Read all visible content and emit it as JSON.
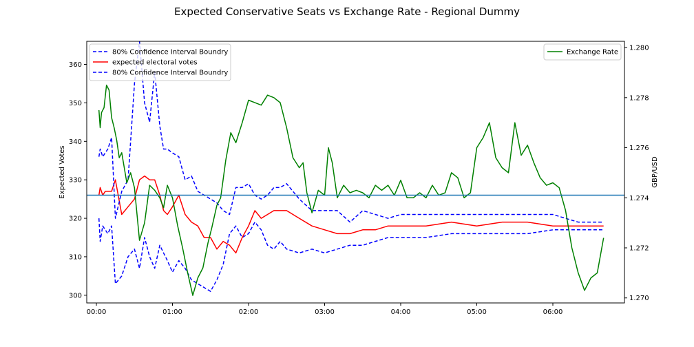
{
  "chart_data": {
    "type": "line",
    "title": "Expected Conservative Seats vs Exchange Rate - Regional Dummy",
    "xlabel": "",
    "x_range": [
      "00:00",
      "07:00"
    ],
    "x_ticks": [
      "00:00",
      "01:00",
      "02:00",
      "03:00",
      "04:00",
      "05:00",
      "06:00"
    ],
    "grid": false,
    "left_axis": {
      "label": "Expected Votes",
      "ylim": [
        298,
        366
      ],
      "ticks": [
        300,
        310,
        320,
        330,
        340,
        350,
        360
      ]
    },
    "right_axis": {
      "label": "GBP/USD",
      "ylim": [
        1.2698,
        1.28025
      ],
      "ticks": [
        "1.270",
        "1.272",
        "1.274",
        "1.276",
        "1.278",
        "1.280"
      ]
    },
    "hline": {
      "axis": "left",
      "value": 326,
      "color": "#1f77b4"
    },
    "legend_left_position": "upper-left",
    "legend_right_position": "upper-right",
    "series": [
      {
        "name": "80% Confidence Interval Boundry",
        "axis": "left",
        "color": "#0000ff",
        "style": "dashed",
        "x": [
          "00:02",
          "00:03",
          "00:05",
          "00:07",
          "00:09",
          "00:12",
          "00:15",
          "00:20",
          "00:25",
          "00:30",
          "00:34",
          "00:38",
          "00:42",
          "00:46",
          "00:50",
          "00:53",
          "00:56",
          "01:00",
          "01:05",
          "01:10",
          "01:15",
          "01:20",
          "01:25",
          "01:30",
          "01:35",
          "01:40",
          "01:45",
          "01:50",
          "01:55",
          "02:00",
          "02:05",
          "02:10",
          "02:15",
          "02:20",
          "02:25",
          "02:30",
          "02:40",
          "02:50",
          "03:00",
          "03:10",
          "03:20",
          "03:30",
          "03:40",
          "03:50",
          "04:00",
          "04:20",
          "04:40",
          "05:00",
          "05:20",
          "05:40",
          "06:00",
          "06:10",
          "06:20",
          "06:30",
          "06:40"
        ],
        "y": [
          320,
          314,
          318,
          317,
          316,
          318,
          303,
          305,
          310,
          312,
          307,
          315,
          310,
          307,
          313,
          311,
          309,
          306,
          309,
          307,
          304,
          303,
          302,
          301,
          304,
          308,
          316,
          318,
          315,
          316,
          319,
          317,
          313,
          312,
          314,
          312,
          311,
          312,
          311,
          312,
          313,
          313,
          314,
          315,
          315,
          315,
          316,
          316,
          316,
          316,
          317,
          317,
          317,
          317,
          317
        ]
      },
      {
        "name": "expected electoral votes",
        "axis": "left",
        "color": "#ff0000",
        "style": "solid",
        "x": [
          "00:02",
          "00:03",
          "00:05",
          "00:07",
          "00:09",
          "00:12",
          "00:15",
          "00:20",
          "00:25",
          "00:30",
          "00:34",
          "00:38",
          "00:42",
          "00:46",
          "00:50",
          "00:53",
          "00:56",
          "01:00",
          "01:05",
          "01:10",
          "01:15",
          "01:20",
          "01:25",
          "01:30",
          "01:35",
          "01:40",
          "01:45",
          "01:50",
          "01:55",
          "02:00",
          "02:05",
          "02:10",
          "02:15",
          "02:20",
          "02:25",
          "02:30",
          "02:40",
          "02:50",
          "03:00",
          "03:10",
          "03:20",
          "03:30",
          "03:40",
          "03:50",
          "04:00",
          "04:20",
          "04:40",
          "05:00",
          "05:20",
          "05:40",
          "06:00",
          "06:10",
          "06:20",
          "06:30",
          "06:40"
        ],
        "y": [
          326,
          328,
          326,
          327,
          327,
          327,
          330,
          321,
          323,
          325,
          330,
          331,
          330,
          330,
          326,
          322,
          321,
          323,
          326,
          321,
          319,
          318,
          315,
          315,
          312,
          314,
          313,
          311,
          315,
          318,
          322,
          320,
          321,
          322,
          322,
          322,
          320,
          318,
          317,
          316,
          316,
          317,
          317,
          318,
          318,
          318,
          319,
          318,
          319,
          319,
          318,
          318,
          318,
          318,
          318
        ]
      },
      {
        "name": "80% Confidence Interval Boundry",
        "axis": "left",
        "color": "#0000ff",
        "style": "dashed",
        "x": [
          "00:02",
          "00:03",
          "00:05",
          "00:07",
          "00:09",
          "00:12",
          "00:15",
          "00:20",
          "00:25",
          "00:30",
          "00:34",
          "00:38",
          "00:42",
          "00:46",
          "00:50",
          "00:53",
          "00:56",
          "01:00",
          "01:05",
          "01:10",
          "01:15",
          "01:20",
          "01:25",
          "01:30",
          "01:35",
          "01:40",
          "01:45",
          "01:50",
          "01:55",
          "02:00",
          "02:05",
          "02:10",
          "02:15",
          "02:20",
          "02:25",
          "02:30",
          "02:40",
          "02:50",
          "03:00",
          "03:10",
          "03:20",
          "03:30",
          "03:40",
          "03:50",
          "04:00",
          "04:20",
          "04:40",
          "05:00",
          "05:20",
          "05:40",
          "06:00",
          "06:10",
          "06:20",
          "06:30",
          "06:40"
        ],
        "y": [
          336,
          338,
          336,
          337,
          338,
          341,
          320,
          327,
          330,
          355,
          366,
          350,
          345,
          358,
          344,
          338,
          338,
          337,
          336,
          330,
          331,
          327,
          326,
          325,
          324,
          322,
          321,
          328,
          328,
          329,
          326,
          325,
          326,
          328,
          328,
          329,
          325,
          322,
          322,
          322,
          319,
          322,
          321,
          320,
          321,
          321,
          321,
          321,
          321,
          321,
          321,
          320,
          319,
          319,
          319
        ]
      },
      {
        "name": "Exchange Rate",
        "axis": "right",
        "color": "#008000",
        "style": "solid",
        "x": [
          "00:02",
          "00:03",
          "00:04",
          "00:06",
          "00:08",
          "00:10",
          "00:12",
          "00:14",
          "00:16",
          "00:18",
          "00:20",
          "00:24",
          "00:27",
          "00:30",
          "00:34",
          "00:38",
          "00:42",
          "00:46",
          "00:50",
          "00:53",
          "00:56",
          "01:00",
          "01:04",
          "01:08",
          "01:12",
          "01:16",
          "01:20",
          "01:24",
          "01:28",
          "01:31",
          "01:35",
          "01:38",
          "01:42",
          "01:46",
          "01:50",
          "01:55",
          "02:00",
          "02:05",
          "02:10",
          "02:15",
          "02:20",
          "02:25",
          "02:30",
          "02:35",
          "02:40",
          "02:43",
          "02:46",
          "02:50",
          "02:55",
          "03:00",
          "03:03",
          "03:06",
          "03:10",
          "03:15",
          "03:20",
          "03:25",
          "03:30",
          "03:35",
          "03:40",
          "03:45",
          "03:50",
          "03:55",
          "04:00",
          "04:05",
          "04:10",
          "04:15",
          "04:20",
          "04:25",
          "04:30",
          "04:35",
          "04:40",
          "04:45",
          "04:50",
          "04:55",
          "05:00",
          "05:05",
          "05:10",
          "05:15",
          "05:20",
          "05:25",
          "05:30",
          "05:35",
          "05:40",
          "05:45",
          "05:50",
          "05:55",
          "06:00",
          "06:05",
          "06:10",
          "06:15",
          "06:20",
          "06:25",
          "06:30",
          "06:35",
          "06:40"
        ],
        "y": [
          1.2775,
          1.2768,
          1.2774,
          1.2776,
          1.2785,
          1.2783,
          1.2772,
          1.2768,
          1.2763,
          1.2756,
          1.2758,
          1.2746,
          1.275,
          1.2744,
          1.2723,
          1.273,
          1.2745,
          1.2743,
          1.274,
          1.2736,
          1.2745,
          1.274,
          1.2729,
          1.272,
          1.271,
          1.2701,
          1.2708,
          1.2712,
          1.2722,
          1.2728,
          1.2737,
          1.274,
          1.2755,
          1.2766,
          1.2762,
          1.277,
          1.2779,
          1.2778,
          1.2777,
          1.2781,
          1.278,
          1.2778,
          1.2768,
          1.2756,
          1.2752,
          1.2754,
          1.2742,
          1.2734,
          1.2743,
          1.2741,
          1.276,
          1.2754,
          1.274,
          1.2745,
          1.2742,
          1.2743,
          1.2742,
          1.274,
          1.2745,
          1.2743,
          1.2745,
          1.2741,
          1.2747,
          1.274,
          1.274,
          1.2742,
          1.274,
          1.2745,
          1.2741,
          1.2742,
          1.275,
          1.2748,
          1.274,
          1.2742,
          1.276,
          1.2764,
          1.277,
          1.2756,
          1.2752,
          1.275,
          1.277,
          1.2757,
          1.2761,
          1.2754,
          1.2748,
          1.2745,
          1.2746,
          1.2744,
          1.2735,
          1.272,
          1.271,
          1.2703,
          1.2708,
          1.271,
          1.2724
        ]
      }
    ]
  }
}
